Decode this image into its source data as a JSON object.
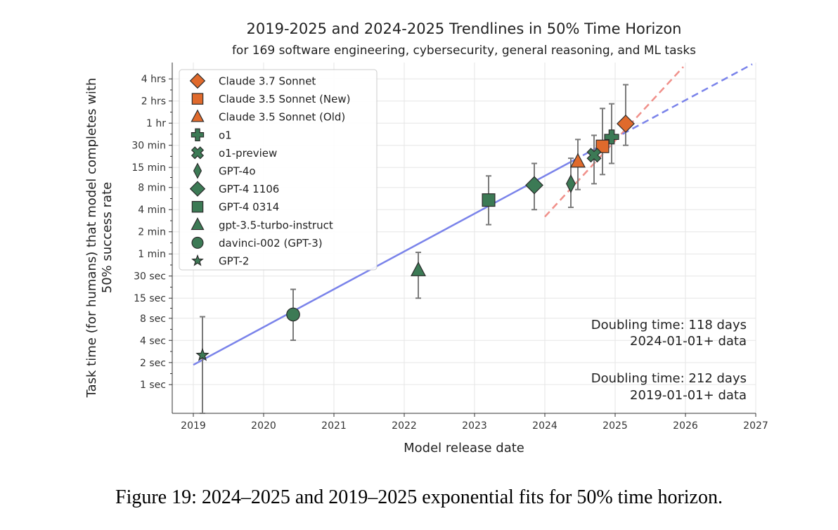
{
  "caption": "Figure 19: 2024–2025 and 2019–2025 exponential fits for 50% time horizon.",
  "chart_data": {
    "type": "scatter",
    "title": "2019-2025 and 2024-2025 Trendlines in 50% Time Horizon",
    "subtitle": "for 169 software engineering, cybersecurity, general reasoning, and ML tasks",
    "xlabel": "Model release date",
    "ylabel_lines": [
      "Task time (for humans) that model completes with",
      "50% success rate"
    ],
    "y_scale": "log2",
    "y_unit": "minutes",
    "xlim": [
      2018.7,
      2027.0
    ],
    "ylim_minutes": [
      0.0068,
      400
    ],
    "x_ticks": [
      {
        "value": 2019,
        "label": "2019"
      },
      {
        "value": 2020,
        "label": "2020"
      },
      {
        "value": 2021,
        "label": "2021"
      },
      {
        "value": 2022,
        "label": "2022"
      },
      {
        "value": 2023,
        "label": "2023"
      },
      {
        "value": 2024,
        "label": "2024"
      },
      {
        "value": 2025,
        "label": "2025"
      },
      {
        "value": 2026,
        "label": "2026"
      },
      {
        "value": 2027,
        "label": "2027"
      }
    ],
    "y_ticks": [
      {
        "minutes": 240,
        "label": "4 hrs"
      },
      {
        "minutes": 120,
        "label": "2 hrs"
      },
      {
        "minutes": 60,
        "label": "1 hr"
      },
      {
        "minutes": 30,
        "label": "30 min"
      },
      {
        "minutes": 15,
        "label": "15 min"
      },
      {
        "minutes": 8,
        "label": "8 min"
      },
      {
        "minutes": 4,
        "label": "4 min"
      },
      {
        "minutes": 2,
        "label": "2 min"
      },
      {
        "minutes": 1,
        "label": "1 min"
      },
      {
        "minutes": 0.5,
        "label": "30 sec"
      },
      {
        "minutes": 0.25,
        "label": "15 sec"
      },
      {
        "minutes": 0.1333,
        "label": "8 sec"
      },
      {
        "minutes": 0.0667,
        "label": "4 sec"
      },
      {
        "minutes": 0.0333,
        "label": "2 sec"
      },
      {
        "minutes": 0.0167,
        "label": "1 sec"
      }
    ],
    "points": [
      {
        "name": "Claude 3.7 Sonnet",
        "marker": "diamond",
        "color": "#e06a2c",
        "x": 2025.15,
        "y": 59,
        "err_low": 30,
        "err_high": 200
      },
      {
        "name": "Claude 3.5 Sonnet (New)",
        "marker": "square",
        "color": "#e06a2c",
        "x": 2024.82,
        "y": 29,
        "err_low": 12,
        "err_high": 95
      },
      {
        "name": "Claude 3.5 Sonnet (Old)",
        "marker": "triangle",
        "color": "#e06a2c",
        "x": 2024.47,
        "y": 18,
        "err_low": 7.5,
        "err_high": 36
      },
      {
        "name": "o1",
        "marker": "plus",
        "color": "#3c7a55",
        "x": 2024.95,
        "y": 39,
        "err_low": 17,
        "err_high": 110
      },
      {
        "name": "o1-preview",
        "marker": "x",
        "color": "#3c7a55",
        "x": 2024.7,
        "y": 22,
        "err_low": 9,
        "err_high": 41
      },
      {
        "name": "GPT-4o",
        "marker": "thin-diamond",
        "color": "#3c7a55",
        "x": 2024.37,
        "y": 9,
        "err_low": 4.3,
        "err_high": 20
      },
      {
        "name": "GPT-4 1106",
        "marker": "diamond",
        "color": "#3c7a55",
        "x": 2023.85,
        "y": 8.6,
        "err_low": 4,
        "err_high": 17
      },
      {
        "name": "GPT-4 0314",
        "marker": "square",
        "color": "#3c7a55",
        "x": 2023.2,
        "y": 5.4,
        "err_low": 2.5,
        "err_high": 11.5
      },
      {
        "name": "gpt-3.5-turbo-instruct",
        "marker": "triangle",
        "color": "#3c7a55",
        "x": 2022.2,
        "y": 0.6,
        "err_low": 0.25,
        "err_high": 1.05
      },
      {
        "name": "davinci-002 (GPT-3)",
        "marker": "circle",
        "color": "#3c7a55",
        "x": 2020.42,
        "y": 0.15,
        "err_low": 0.067,
        "err_high": 0.33
      },
      {
        "name": "GPT-2",
        "marker": "star",
        "color": "#3c7a55",
        "x": 2019.13,
        "y": 0.042,
        "err_low": 0.0068,
        "err_high": 0.14
      }
    ],
    "trendlines": [
      {
        "name": "2019-01-01+ data",
        "color": "#7a83ea",
        "x0": 2019.0,
        "y0": 0.031,
        "x1": 2024.4,
        "y1": 18.5,
        "dashed_to_x": 2026.95,
        "dashed_to_y": 380
      },
      {
        "name": "2024-01-01+ data",
        "color": "#f0908a",
        "x0": 2024.0,
        "y0": 3.2,
        "x1": 2025.97,
        "y1": 350,
        "dashed": true
      }
    ],
    "annotations": [
      {
        "text": "Doubling time: 118 days",
        "color": "#e82b2b"
      },
      {
        "text": "2024-01-01+ data",
        "color": "#e82b2b"
      },
      {
        "text": "Doubling time: 212 days",
        "color": "#2a2ad0"
      },
      {
        "text": "2019-01-01+ data",
        "color": "#2a2ad0"
      }
    ]
  }
}
